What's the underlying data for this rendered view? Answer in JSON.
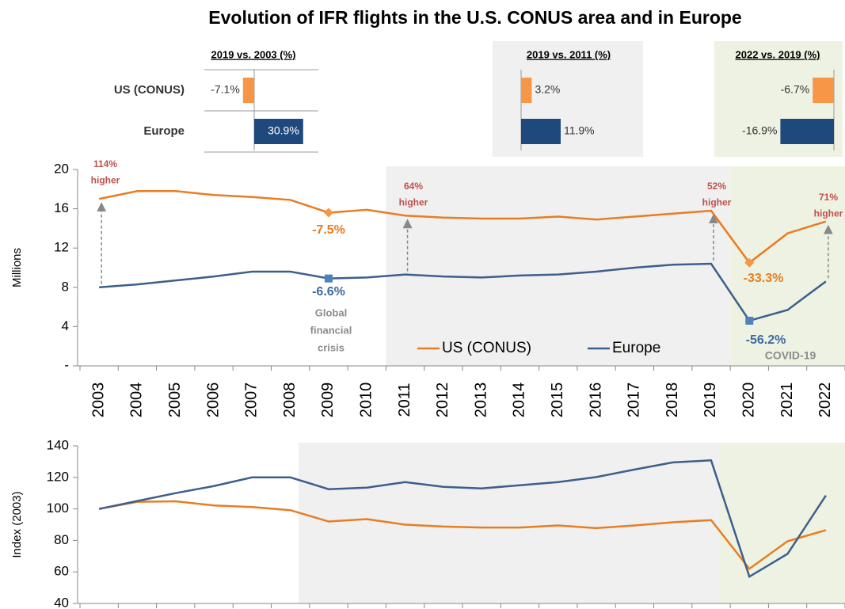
{
  "title": "Evolution of IFR flights in the U.S. CONUS area and in Europe",
  "chart_data": [
    {
      "type": "line",
      "ylabel": "Millions",
      "categories": [
        "2003",
        "2004",
        "2005",
        "2006",
        "2007",
        "2008",
        "2009",
        "2010",
        "2011",
        "2012",
        "2013",
        "2014",
        "2015",
        "2016",
        "2017",
        "2018",
        "2019",
        "2020",
        "2021",
        "2022"
      ],
      "series": [
        {
          "name": "US (CONUS)",
          "color": "#e87d22",
          "values": [
            17.0,
            17.8,
            17.8,
            17.4,
            17.2,
            16.9,
            15.6,
            15.9,
            15.3,
            15.1,
            15.0,
            15.0,
            15.2,
            14.9,
            15.2,
            15.5,
            15.8,
            10.5,
            13.5,
            14.7
          ]
        },
        {
          "name": "Europe",
          "color": "#3c5f8c",
          "values": [
            8.0,
            8.3,
            8.7,
            9.1,
            9.6,
            9.6,
            8.9,
            9.0,
            9.3,
            9.1,
            9.0,
            9.2,
            9.3,
            9.6,
            10.0,
            10.3,
            10.4,
            4.6,
            5.7,
            8.6
          ]
        }
      ],
      "ylim": [
        0,
        20
      ],
      "yticks": [
        {
          "value": 0,
          "label": "-"
        },
        4,
        8,
        12,
        16,
        20
      ],
      "annotations": [
        {
          "lines": [
            "114%",
            "higher"
          ]
        },
        {
          "lines": [
            "64%",
            "higher"
          ]
        },
        {
          "lines": [
            "52%",
            "higher"
          ]
        },
        {
          "lines": [
            "71%",
            "higher"
          ]
        },
        {
          "lines": [
            "-7.5%"
          ]
        },
        {
          "lines": [
            "-6.6%"
          ]
        },
        {
          "lines": [
            "Global",
            "financial",
            "crisis"
          ]
        },
        {
          "lines": [
            "-33.3%"
          ]
        },
        {
          "lines": [
            "-56.2%"
          ]
        },
        {
          "lines": [
            "COVID-19"
          ]
        }
      ]
    },
    {
      "type": "line",
      "ylabel": "Index (2003)",
      "series": [
        {
          "name": "US (CONUS)",
          "color": "#e87d22",
          "values": [
            100,
            104.5,
            104.8,
            102.2,
            101.2,
            99.2,
            92,
            93.5,
            90,
            88.8,
            88.2,
            88.2,
            89.5,
            87.8,
            89.5,
            91.5,
            92.9,
            62,
            79.5,
            86.5
          ]
        },
        {
          "name": "Europe",
          "color": "#3c5f8c",
          "values": [
            100,
            105,
            110,
            114.5,
            120,
            120,
            112.5,
            113.5,
            117,
            114,
            113,
            115,
            117,
            120.2,
            125,
            129.5,
            130.8,
            57,
            71.5,
            108.5
          ]
        }
      ],
      "ylim": [
        40,
        140
      ],
      "yticks": [
        40,
        60,
        80,
        100,
        120,
        140
      ]
    },
    {
      "type": "hbar",
      "title": "2019 vs. 2003 (%)",
      "categories": [
        "US (CONUS)",
        "Europe"
      ],
      "values": [
        -7.1,
        30.9
      ],
      "value_labels": [
        "-7.1%",
        "30.9%"
      ],
      "colors": [
        "#f79646",
        "#1f497d"
      ]
    },
    {
      "type": "hbar",
      "title": "2019 vs. 2011 (%)",
      "values": [
        3.2,
        11.9
      ],
      "value_labels": [
        "3.2%",
        "11.9%"
      ],
      "colors": [
        "#f79646",
        "#1f497d"
      ]
    },
    {
      "type": "hbar",
      "title": "2022 vs. 2019 (%)",
      "values": [
        -6.7,
        -16.9
      ],
      "value_labels": [
        "-6.7%",
        "-16.9%"
      ],
      "colors": [
        "#f79646",
        "#1f497d"
      ]
    }
  ]
}
